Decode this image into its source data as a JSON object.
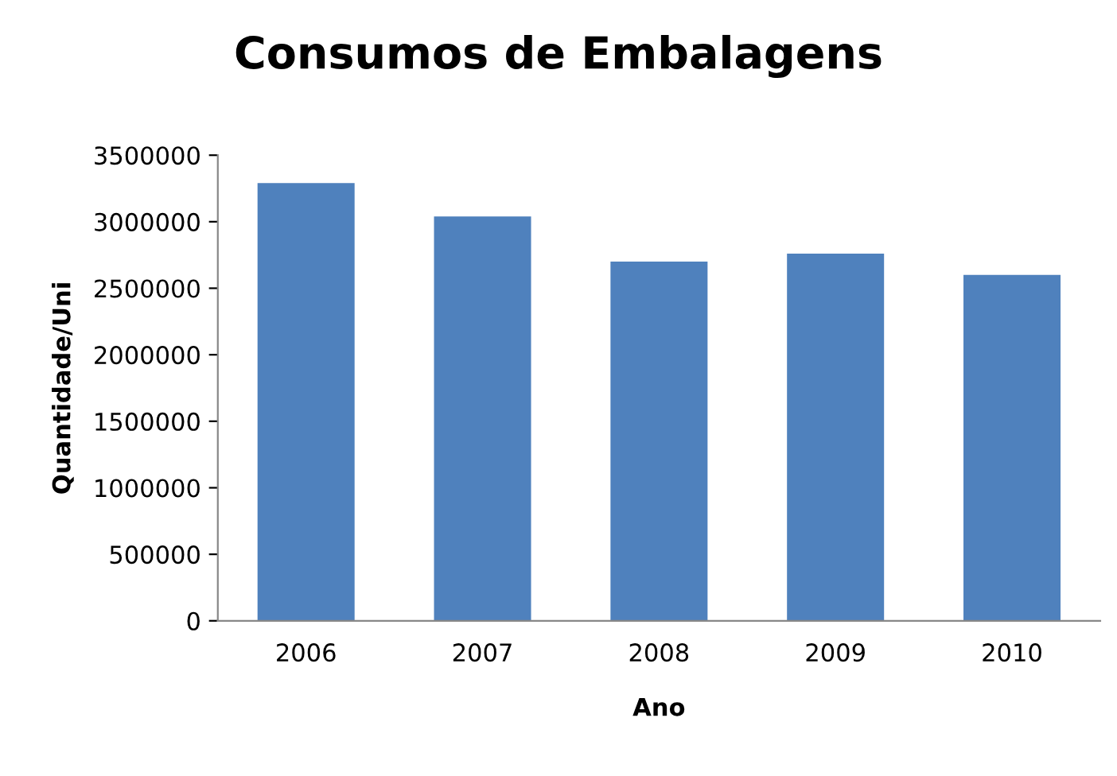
{
  "chart_data": {
    "type": "bar",
    "title": "Consumos de Embalagens",
    "xlabel": "Ano",
    "ylabel": "Quantidade/Uni",
    "categories": [
      "2006",
      "2007",
      "2008",
      "2009",
      "2010"
    ],
    "values": [
      3290000,
      3040000,
      2700000,
      2760000,
      2600000
    ],
    "color": "#4f81bd",
    "ylim": [
      0,
      3500000
    ],
    "yticks": [
      0,
      500000,
      1000000,
      1500000,
      2000000,
      2500000,
      3000000,
      3500000
    ],
    "grid": false,
    "legend": false
  }
}
